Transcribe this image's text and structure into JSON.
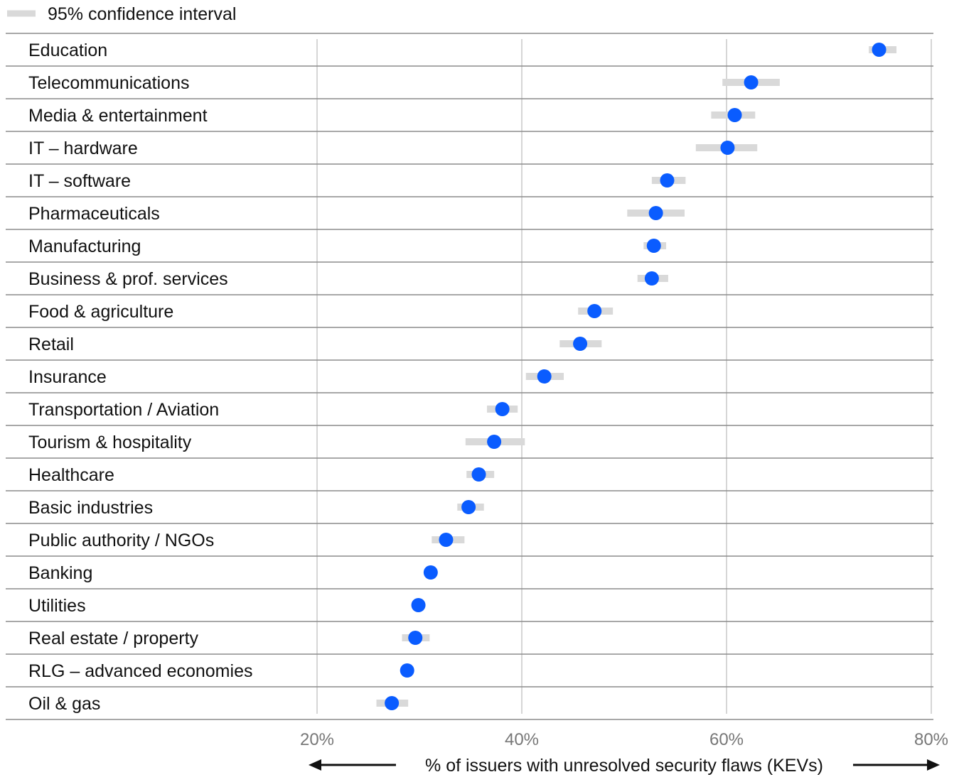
{
  "legend": {
    "ci_label": "95% confidence interval"
  },
  "colors": {
    "point": "#0a5cff",
    "ci": "#d9d9d9",
    "rule": "#8c8c8c",
    "grid": "#c8c8c8"
  },
  "chart_data": {
    "type": "dot-plot with confidence intervals",
    "xlabel": "% of issuers with unresolved security flaws (KEVs)",
    "xlim": [
      20,
      80
    ],
    "xticks": [
      20,
      40,
      60,
      80
    ],
    "xtick_labels": [
      "20%",
      "40%",
      "60%",
      "80%"
    ],
    "grid": true,
    "legend_position": "top-left",
    "rows": [
      {
        "label": "Education",
        "value": 74.9,
        "ci_low": 73.9,
        "ci_high": 76.6
      },
      {
        "label": "Telecommunications",
        "value": 62.4,
        "ci_low": 59.6,
        "ci_high": 65.2
      },
      {
        "label": "Media & entertainment",
        "value": 60.8,
        "ci_low": 58.5,
        "ci_high": 62.8
      },
      {
        "label": "IT – hardware",
        "value": 60.1,
        "ci_low": 57.0,
        "ci_high": 63.0
      },
      {
        "label": "IT – software",
        "value": 54.2,
        "ci_low": 52.7,
        "ci_high": 56.0
      },
      {
        "label": "Pharmaceuticals",
        "value": 53.1,
        "ci_low": 50.3,
        "ci_high": 55.9
      },
      {
        "label": "Manufacturing",
        "value": 52.9,
        "ci_low": 51.9,
        "ci_high": 54.1
      },
      {
        "label": "Business & prof. services",
        "value": 52.7,
        "ci_low": 51.3,
        "ci_high": 54.3
      },
      {
        "label": "Food & agriculture",
        "value": 47.1,
        "ci_low": 45.5,
        "ci_high": 48.9
      },
      {
        "label": "Retail",
        "value": 45.7,
        "ci_low": 43.7,
        "ci_high": 47.8
      },
      {
        "label": "Insurance",
        "value": 42.2,
        "ci_low": 40.4,
        "ci_high": 44.1
      },
      {
        "label": "Transportation / Aviation",
        "value": 38.1,
        "ci_low": 36.6,
        "ci_high": 39.6
      },
      {
        "label": "Tourism & hospitality",
        "value": 37.3,
        "ci_low": 34.5,
        "ci_high": 40.3
      },
      {
        "label": "Healthcare",
        "value": 35.8,
        "ci_low": 34.6,
        "ci_high": 37.3
      },
      {
        "label": "Basic industries",
        "value": 34.8,
        "ci_low": 33.7,
        "ci_high": 36.3
      },
      {
        "label": "Public authority / NGOs",
        "value": 32.6,
        "ci_low": 31.2,
        "ci_high": 34.4
      },
      {
        "label": "Banking",
        "value": 31.1,
        "ci_low": 31.1,
        "ci_high": 31.1
      },
      {
        "label": "Utilities",
        "value": 29.9,
        "ci_low": 29.4,
        "ci_high": 30.5
      },
      {
        "label": "Real estate / property",
        "value": 29.6,
        "ci_low": 28.3,
        "ci_high": 31.0
      },
      {
        "label": "RLG – advanced economies",
        "value": 28.8,
        "ci_low": 28.8,
        "ci_high": 28.8
      },
      {
        "label": "Oil & gas",
        "value": 27.3,
        "ci_low": 25.8,
        "ci_high": 28.9
      }
    ]
  }
}
